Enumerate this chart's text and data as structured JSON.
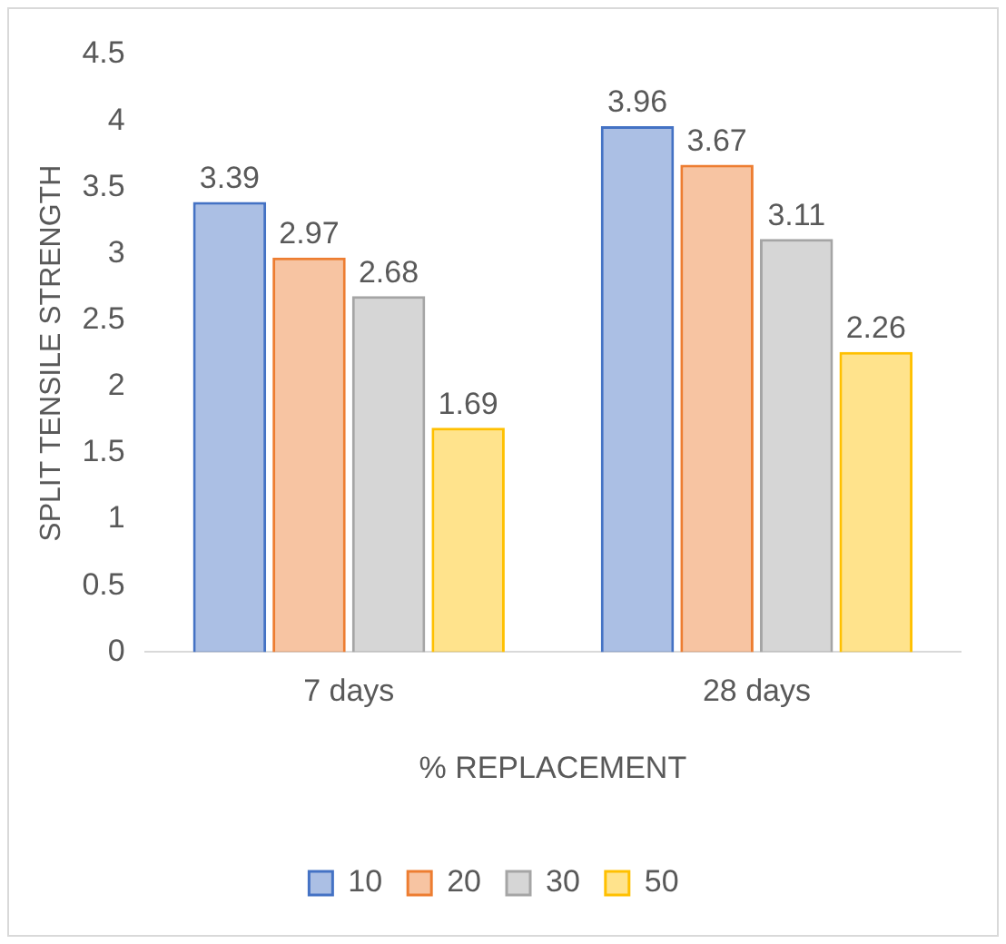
{
  "chart_data": {
    "type": "bar",
    "xlabel": "% REPLACEMENT",
    "ylabel": "SPLIT TENSILE STRENGTH",
    "categories": [
      "7 days",
      "28 days"
    ],
    "series": [
      {
        "name": "10",
        "color": "#4472c4",
        "values": [
          3.39,
          3.96
        ]
      },
      {
        "name": "20",
        "color": "#ed7d31",
        "values": [
          2.97,
          3.67
        ]
      },
      {
        "name": "30",
        "color": "#a5a5a5",
        "values": [
          2.68,
          3.11
        ]
      },
      {
        "name": "50",
        "color": "#ffc000",
        "values": [
          1.69,
          2.26
        ]
      }
    ],
    "ylim": [
      0,
      4.5
    ],
    "yticks": [
      0,
      0.5,
      1,
      1.5,
      2,
      2.5,
      3,
      3.5,
      4,
      4.5
    ],
    "grid": false,
    "legend": "bottom",
    "data_labels": true
  }
}
